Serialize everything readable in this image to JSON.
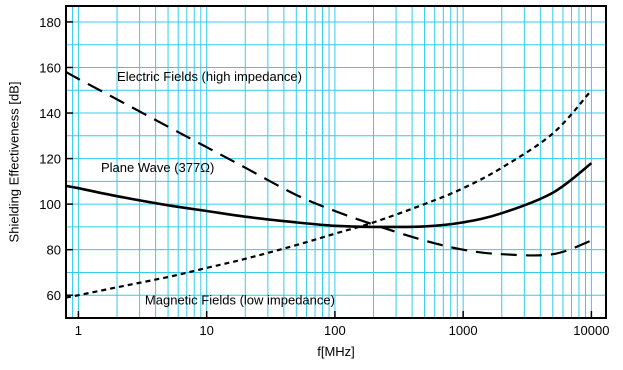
{
  "chart_data": {
    "type": "line",
    "xlabel": "f[MHz]",
    "ylabel": "Shielding Effectiveness [dB]",
    "x_scale": "log",
    "xlim": [
      0.8,
      13000
    ],
    "ylim": [
      50,
      187
    ],
    "x_ticks": [
      1,
      10,
      100,
      1000,
      10000
    ],
    "x_tick_labels": [
      "1",
      "10",
      "100",
      "1000",
      "10000"
    ],
    "y_ticks": [
      60,
      80,
      100,
      120,
      140,
      160,
      180
    ],
    "y_tick_labels": [
      "60",
      "80",
      "100",
      "120",
      "140",
      "160",
      "180"
    ],
    "grid": true,
    "colors": {
      "grid": "#33ccee",
      "series": "#000000"
    },
    "series": [
      {
        "name": "Electric Fields (high impedance)",
        "style": "long-dash",
        "x": [
          0.8,
          1,
          2,
          5,
          10,
          20,
          50,
          100,
          200,
          500,
          1000,
          2000,
          5000,
          10000
        ],
        "y": [
          158,
          155,
          146,
          134,
          125,
          116,
          104,
          97,
          91,
          84,
          80,
          78,
          78,
          84
        ]
      },
      {
        "name": "Plane Wave (377Ω)",
        "style": "solid",
        "x": [
          0.8,
          1,
          2,
          5,
          10,
          20,
          50,
          100,
          200,
          500,
          1000,
          2000,
          5000,
          10000
        ],
        "y": [
          108,
          107,
          103.5,
          99.5,
          97,
          94.5,
          92,
          90.5,
          90,
          90.2,
          92,
          96,
          105,
          118
        ]
      },
      {
        "name": "Magnetic Fields (low impedance)",
        "style": "short-dash",
        "x": [
          0.8,
          1,
          2,
          5,
          10,
          20,
          50,
          100,
          200,
          500,
          1000,
          2000,
          5000,
          10000
        ],
        "y": [
          59,
          60,
          63.5,
          68,
          72,
          76,
          82,
          87,
          92,
          100,
          107,
          116,
          131,
          150
        ]
      }
    ],
    "annotations": [
      {
        "text": "Electric Fields (high impedance)",
        "x": 2,
        "y": 154
      },
      {
        "text": "Plane Wave (377Ω)",
        "x": 1.5,
        "y": 114
      },
      {
        "text": "Magnetic Fields (low impedance)",
        "x": 3.3,
        "y": 56
      }
    ]
  }
}
